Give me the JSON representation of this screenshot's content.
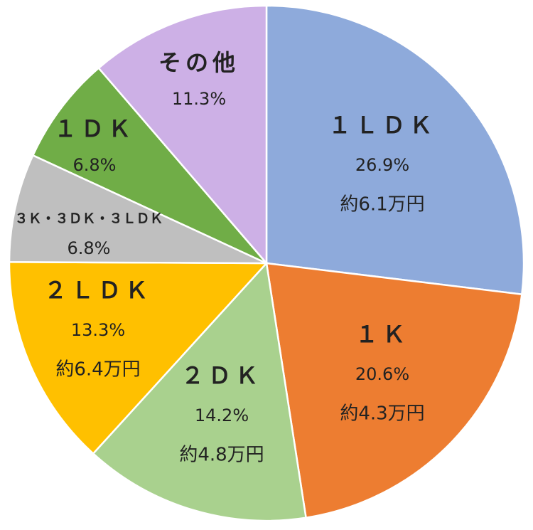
{
  "chart_data": {
    "type": "pie",
    "title": "",
    "start_angle_deg": 0,
    "direction": "clockwise",
    "slices": [
      {
        "label": "１ＬＤＫ",
        "percent": 26.9,
        "percent_text": "26.9%",
        "rent_text": "約6.1万円",
        "color": "#8EAADB"
      },
      {
        "label": "１Ｋ",
        "percent": 20.6,
        "percent_text": "20.6%",
        "rent_text": "約4.3万円",
        "color": "#ED7D31"
      },
      {
        "label": "２ＤＫ",
        "percent": 14.2,
        "percent_text": "14.2%",
        "rent_text": "約4.8万円",
        "color": "#A9D18E"
      },
      {
        "label": "２ＬＤＫ",
        "percent": 13.3,
        "percent_text": "13.3%",
        "rent_text": "約6.4万円",
        "color": "#FFC000"
      },
      {
        "label": "３Ｋ・３ＤＫ・３ＬＤＫ",
        "percent": 6.8,
        "percent_text": "6.8%",
        "rent_text": "",
        "color": "#BFBFBF"
      },
      {
        "label": "１ＤＫ",
        "percent": 6.8,
        "percent_text": "6.8%",
        "rent_text": "",
        "color": "#70AD47"
      },
      {
        "label": "その他",
        "percent": 11.3,
        "percent_text": "11.3%",
        "rent_text": "",
        "color": "#CDB0E6"
      }
    ]
  }
}
